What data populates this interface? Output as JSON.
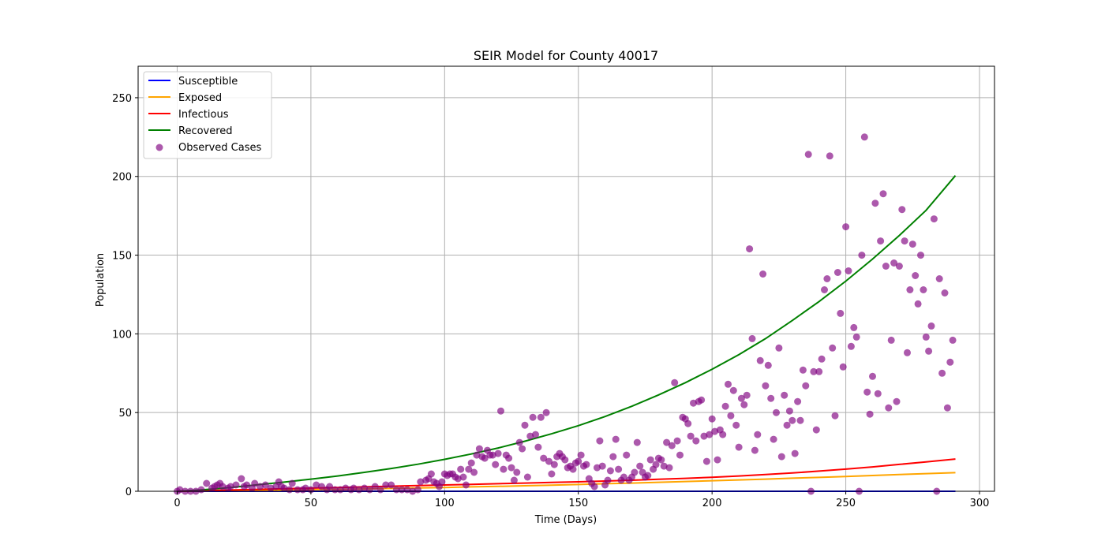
{
  "chart_data": {
    "type": "line",
    "title": "SEIR Model for County 40017",
    "xlabel": "Time (Days)",
    "ylabel": "Population",
    "xlim": [
      -14.6,
      305.6
    ],
    "ylim": [
      0,
      270
    ],
    "xticks": [
      0,
      50,
      100,
      150,
      200,
      250,
      300
    ],
    "yticks": [
      0,
      50,
      100,
      150,
      200,
      250
    ],
    "grid": true,
    "legend_position": "upper left",
    "series": [
      {
        "name": "Susceptible",
        "color": "#0000ff",
        "kind": "line",
        "x": [
          0,
          291
        ],
        "y": [
          0,
          0
        ]
      },
      {
        "name": "Exposed",
        "color": "#ffa500",
        "kind": "line",
        "x": [
          0,
          10,
          20,
          30,
          40,
          50,
          60,
          70,
          80,
          90,
          100,
          110,
          120,
          130,
          140,
          150,
          160,
          170,
          180,
          190,
          200,
          210,
          220,
          230,
          240,
          250,
          260,
          270,
          280,
          291
        ],
        "y": [
          0,
          0.2,
          0.4,
          0.6,
          0.8,
          1.0,
          1.2,
          1.5,
          1.8,
          2.1,
          2.4,
          2.8,
          3.1,
          3.5,
          3.9,
          4.3,
          4.8,
          5.2,
          5.7,
          6.2,
          6.7,
          7.2,
          7.7,
          8.3,
          8.8,
          9.4,
          10.0,
          10.6,
          11.2,
          11.8
        ]
      },
      {
        "name": "Infectious",
        "color": "#ff0000",
        "kind": "line",
        "x": [
          0,
          10,
          20,
          30,
          40,
          50,
          60,
          70,
          80,
          90,
          100,
          110,
          120,
          130,
          140,
          150,
          160,
          170,
          180,
          190,
          200,
          210,
          220,
          230,
          240,
          250,
          260,
          270,
          280,
          291
        ],
        "y": [
          0,
          0.4,
          0.8,
          1.2,
          1.6,
          2.0,
          2.4,
          2.8,
          3.2,
          3.6,
          4.0,
          4.4,
          4.8,
          5.2,
          5.6,
          6.0,
          6.5,
          7.0,
          7.6,
          8.2,
          8.9,
          9.7,
          10.6,
          11.6,
          12.8,
          14.1,
          15.5,
          17.1,
          18.7,
          20.5
        ]
      },
      {
        "name": "Recovered",
        "color": "#008000",
        "kind": "line",
        "x": [
          0,
          10,
          20,
          30,
          40,
          50,
          60,
          70,
          80,
          90,
          100,
          110,
          120,
          130,
          140,
          150,
          160,
          170,
          180,
          190,
          200,
          210,
          220,
          230,
          240,
          250,
          260,
          270,
          280,
          291
        ],
        "y": [
          0,
          1.0,
          2.4,
          4.1,
          5.8,
          7.7,
          9.7,
          12.0,
          14.5,
          17.2,
          20.3,
          23.7,
          27.5,
          31.8,
          36.5,
          41.7,
          47.5,
          54.0,
          61.2,
          69.0,
          77.5,
          86.8,
          97.0,
          108.5,
          120.5,
          133.5,
          147.5,
          162.5,
          178.5,
          200.5
        ]
      },
      {
        "name": "Observed Cases",
        "color": "#800080",
        "kind": "scatter",
        "points": [
          [
            0,
            0
          ],
          [
            1,
            1
          ],
          [
            3,
            0
          ],
          [
            5,
            0
          ],
          [
            7,
            0
          ],
          [
            9,
            1
          ],
          [
            11,
            5
          ],
          [
            13,
            2
          ],
          [
            14,
            3
          ],
          [
            15,
            4
          ],
          [
            16,
            5
          ],
          [
            17,
            3
          ],
          [
            19,
            2
          ],
          [
            20,
            3
          ],
          [
            22,
            4
          ],
          [
            24,
            8
          ],
          [
            25,
            3
          ],
          [
            26,
            4
          ],
          [
            28,
            2
          ],
          [
            29,
            5
          ],
          [
            31,
            3
          ],
          [
            33,
            4
          ],
          [
            35,
            2
          ],
          [
            37,
            3
          ],
          [
            38,
            6
          ],
          [
            39,
            3
          ],
          [
            40,
            2
          ],
          [
            42,
            1
          ],
          [
            43,
            5
          ],
          [
            45,
            1
          ],
          [
            47,
            1
          ],
          [
            48,
            2
          ],
          [
            50,
            1
          ],
          [
            52,
            4
          ],
          [
            54,
            3
          ],
          [
            56,
            1
          ],
          [
            57,
            3
          ],
          [
            59,
            1
          ],
          [
            61,
            1
          ],
          [
            63,
            2
          ],
          [
            65,
            1
          ],
          [
            66,
            2
          ],
          [
            68,
            1
          ],
          [
            70,
            2
          ],
          [
            72,
            1
          ],
          [
            74,
            3
          ],
          [
            76,
            1
          ],
          [
            78,
            4
          ],
          [
            80,
            4
          ],
          [
            82,
            1
          ],
          [
            84,
            1
          ],
          [
            86,
            1
          ],
          [
            88,
            0
          ],
          [
            90,
            1
          ],
          [
            91,
            6
          ],
          [
            93,
            7
          ],
          [
            94,
            8
          ],
          [
            95,
            11
          ],
          [
            96,
            6
          ],
          [
            97,
            5
          ],
          [
            98,
            3
          ],
          [
            99,
            6
          ],
          [
            100,
            11
          ],
          [
            101,
            10
          ],
          [
            102,
            11
          ],
          [
            103,
            11
          ],
          [
            104,
            9
          ],
          [
            105,
            8
          ],
          [
            106,
            14
          ],
          [
            107,
            9
          ],
          [
            108,
            4
          ],
          [
            109,
            14
          ],
          [
            110,
            18
          ],
          [
            111,
            12
          ],
          [
            112,
            23
          ],
          [
            113,
            27
          ],
          [
            114,
            22
          ],
          [
            115,
            21
          ],
          [
            116,
            26
          ],
          [
            117,
            23
          ],
          [
            118,
            23
          ],
          [
            119,
            17
          ],
          [
            120,
            24
          ],
          [
            121,
            51
          ],
          [
            122,
            14
          ],
          [
            123,
            23
          ],
          [
            124,
            21
          ],
          [
            125,
            15
          ],
          [
            126,
            7
          ],
          [
            127,
            12
          ],
          [
            128,
            31
          ],
          [
            129,
            27
          ],
          [
            130,
            42
          ],
          [
            131,
            9
          ],
          [
            132,
            35
          ],
          [
            133,
            47
          ],
          [
            134,
            36
          ],
          [
            135,
            28
          ],
          [
            136,
            47
          ],
          [
            137,
            21
          ],
          [
            138,
            50
          ],
          [
            139,
            19
          ],
          [
            140,
            11
          ],
          [
            141,
            17
          ],
          [
            142,
            22
          ],
          [
            143,
            24
          ],
          [
            144,
            22
          ],
          [
            145,
            20
          ],
          [
            146,
            15
          ],
          [
            147,
            16
          ],
          [
            148,
            14
          ],
          [
            149,
            18
          ],
          [
            150,
            19
          ],
          [
            151,
            23
          ],
          [
            152,
            16
          ],
          [
            153,
            17
          ],
          [
            154,
            8
          ],
          [
            155,
            5
          ],
          [
            156,
            3
          ],
          [
            157,
            15
          ],
          [
            158,
            32
          ],
          [
            159,
            16
          ],
          [
            160,
            4
          ],
          [
            161,
            7
          ],
          [
            162,
            13
          ],
          [
            163,
            22
          ],
          [
            164,
            33
          ],
          [
            165,
            14
          ],
          [
            166,
            7
          ],
          [
            167,
            9
          ],
          [
            168,
            23
          ],
          [
            169,
            7
          ],
          [
            170,
            9
          ],
          [
            171,
            12
          ],
          [
            172,
            31
          ],
          [
            173,
            16
          ],
          [
            174,
            12
          ],
          [
            175,
            9
          ],
          [
            176,
            10
          ],
          [
            177,
            20
          ],
          [
            178,
            14
          ],
          [
            179,
            17
          ],
          [
            180,
            21
          ],
          [
            181,
            20
          ],
          [
            182,
            16
          ],
          [
            183,
            31
          ],
          [
            184,
            15
          ],
          [
            185,
            29
          ],
          [
            186,
            69
          ],
          [
            187,
            32
          ],
          [
            188,
            23
          ],
          [
            189,
            47
          ],
          [
            190,
            46
          ],
          [
            191,
            43
          ],
          [
            192,
            35
          ],
          [
            193,
            56
          ],
          [
            194,
            32
          ],
          [
            195,
            57
          ],
          [
            196,
            58
          ],
          [
            197,
            35
          ],
          [
            198,
            19
          ],
          [
            199,
            36
          ],
          [
            200,
            46
          ],
          [
            201,
            38
          ],
          [
            202,
            20
          ],
          [
            203,
            39
          ],
          [
            204,
            36
          ],
          [
            205,
            54
          ],
          [
            206,
            68
          ],
          [
            207,
            48
          ],
          [
            208,
            64
          ],
          [
            209,
            42
          ],
          [
            210,
            28
          ],
          [
            211,
            59
          ],
          [
            212,
            55
          ],
          [
            213,
            61
          ],
          [
            214,
            154
          ],
          [
            215,
            97
          ],
          [
            216,
            26
          ],
          [
            217,
            36
          ],
          [
            218,
            83
          ],
          [
            219,
            138
          ],
          [
            220,
            67
          ],
          [
            221,
            80
          ],
          [
            222,
            59
          ],
          [
            223,
            33
          ],
          [
            224,
            50
          ],
          [
            225,
            91
          ],
          [
            226,
            22
          ],
          [
            227,
            61
          ],
          [
            228,
            42
          ],
          [
            229,
            51
          ],
          [
            230,
            45
          ],
          [
            231,
            24
          ],
          [
            232,
            57
          ],
          [
            233,
            45
          ],
          [
            234,
            77
          ],
          [
            235,
            67
          ],
          [
            236,
            214
          ],
          [
            237,
            0
          ],
          [
            238,
            76
          ],
          [
            239,
            39
          ],
          [
            240,
            76
          ],
          [
            241,
            84
          ],
          [
            242,
            128
          ],
          [
            243,
            135
          ],
          [
            244,
            213
          ],
          [
            245,
            91
          ],
          [
            246,
            48
          ],
          [
            247,
            139
          ],
          [
            248,
            113
          ],
          [
            249,
            79
          ],
          [
            250,
            168
          ],
          [
            251,
            140
          ],
          [
            252,
            92
          ],
          [
            253,
            104
          ],
          [
            254,
            98
          ],
          [
            255,
            0
          ],
          [
            256,
            150
          ],
          [
            257,
            225
          ],
          [
            258,
            63
          ],
          [
            259,
            49
          ],
          [
            260,
            73
          ],
          [
            261,
            183
          ],
          [
            262,
            62
          ],
          [
            263,
            159
          ],
          [
            264,
            189
          ],
          [
            265,
            143
          ],
          [
            266,
            53
          ],
          [
            267,
            96
          ],
          [
            268,
            145
          ],
          [
            269,
            57
          ],
          [
            270,
            143
          ],
          [
            271,
            179
          ],
          [
            272,
            159
          ],
          [
            273,
            88
          ],
          [
            274,
            128
          ],
          [
            275,
            157
          ],
          [
            276,
            137
          ],
          [
            277,
            119
          ],
          [
            278,
            150
          ],
          [
            279,
            128
          ],
          [
            280,
            98
          ],
          [
            281,
            89
          ],
          [
            282,
            105
          ],
          [
            283,
            173
          ],
          [
            284,
            0
          ],
          [
            285,
            135
          ],
          [
            286,
            75
          ],
          [
            287,
            126
          ],
          [
            288,
            53
          ],
          [
            289,
            82
          ],
          [
            290,
            96
          ]
        ]
      }
    ]
  }
}
